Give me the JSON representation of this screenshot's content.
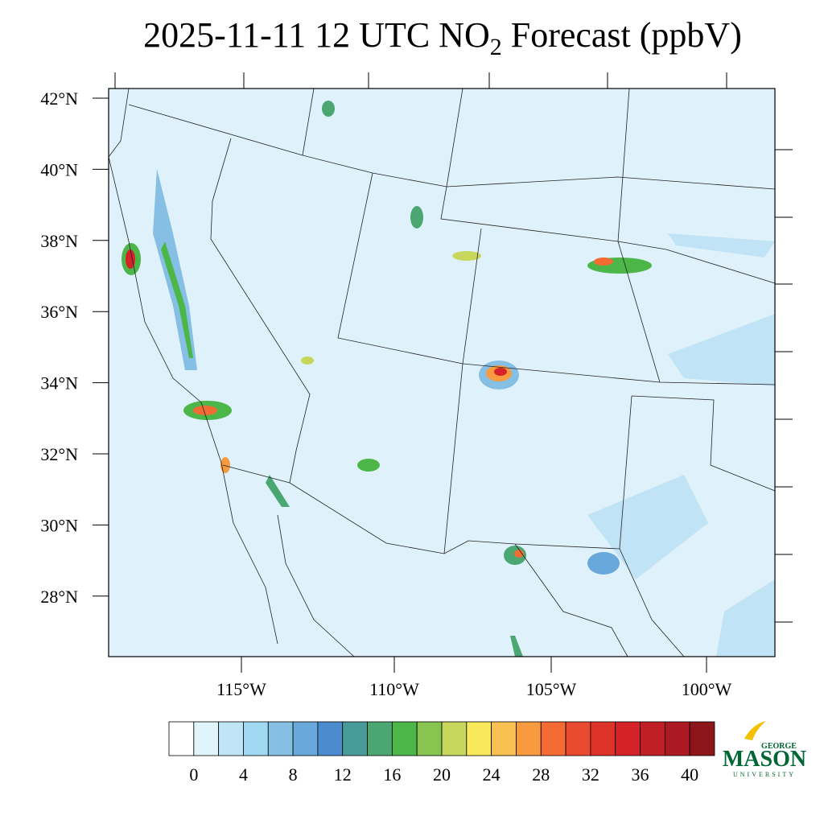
{
  "header": {
    "title_main": "2025-11-11 12 UTC NO",
    "title_sub": "2",
    "title_end": " Forecast (ppbV)"
  },
  "map": {
    "lat_labels": [
      "42°N",
      "40°N",
      "38°N",
      "36°N",
      "34°N",
      "32°N",
      "30°N",
      "28°N"
    ],
    "lon_labels": [
      "115°W",
      "110°W",
      "105°W",
      "100°W"
    ]
  },
  "colorbar": {
    "lim": [
      -2,
      42
    ],
    "ticks": [
      0,
      4,
      8,
      12,
      16,
      20,
      24,
      28,
      32,
      36,
      40
    ],
    "colors": [
      "#ffffff",
      "#e1f3fb",
      "#c0e6f6",
      "#a2d9f2",
      "#86bfe4",
      "#69a8da",
      "#4a8cce",
      "#479c9a",
      "#4aa772",
      "#4cb648",
      "#88c550",
      "#c6d75b",
      "#f8e95c",
      "#f9c151",
      "#f89a40",
      "#f46b34",
      "#e94b30",
      "#de3328",
      "#d52229",
      "#c11f26",
      "#ab1a22",
      "#8d161b"
    ]
  },
  "logo": {
    "top": "GEORGE",
    "main": "MASON",
    "bottom": "UNIVERSITY"
  }
}
